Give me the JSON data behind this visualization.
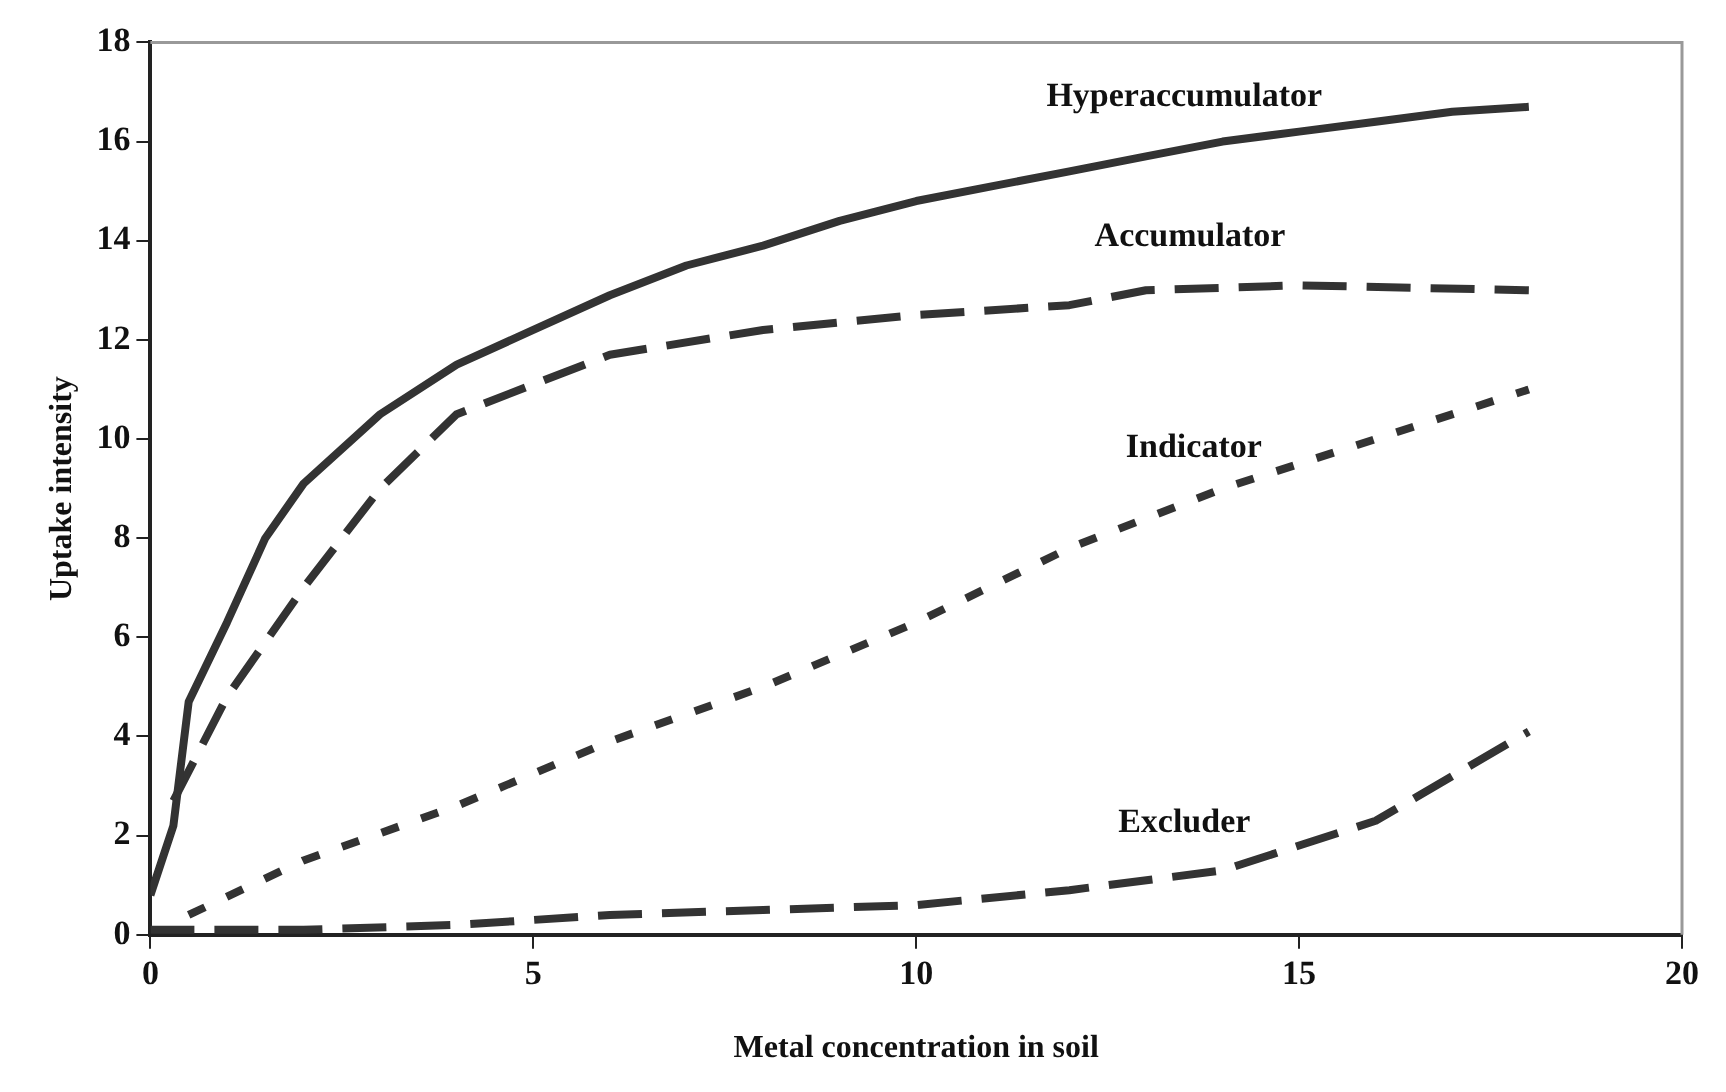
{
  "chart_data": {
    "type": "line",
    "xlabel": "Metal concentration in soil",
    "ylabel": "Uptake intensity",
    "xlim": [
      0,
      20
    ],
    "xticks": [
      0,
      5,
      10,
      15,
      20
    ],
    "ylim": [
      0,
      18
    ],
    "yticks": [
      0,
      2,
      4,
      6,
      8,
      10,
      12,
      14,
      16,
      18
    ],
    "grid": false,
    "legend": false,
    "marker": "none",
    "series": [
      {
        "name": "Hyperaccumulator",
        "color": "#333333",
        "line_style": "solid",
        "x": [
          0,
          0.3,
          0.5,
          1,
          1.5,
          2,
          3,
          4,
          5,
          6,
          7,
          8,
          9,
          10,
          11,
          12,
          13,
          14,
          15,
          16,
          17,
          18
        ],
        "values": [
          0.8,
          2.2,
          4.7,
          6.3,
          8,
          9.1,
          10.5,
          11.5,
          12.2,
          12.9,
          13.5,
          13.9,
          14.4,
          14.8,
          15.1,
          15.4,
          15.7,
          16,
          16.2,
          16.4,
          16.6,
          16.7
        ]
      },
      {
        "name": "Accumulator",
        "color": "#333333",
        "line_style": "dashed",
        "x": [
          0.3,
          1,
          2,
          3,
          4,
          5,
          6,
          8,
          10,
          12,
          13,
          15,
          18
        ],
        "values": [
          2.7,
          4.8,
          7,
          9,
          10.5,
          11.1,
          11.7,
          12.2,
          12.5,
          12.7,
          13,
          13.1,
          13
        ]
      },
      {
        "name": "Indicator",
        "color": "#333333",
        "line_style": "dotted",
        "x": [
          0.5,
          2,
          4,
          6,
          8,
          10,
          12,
          14,
          16,
          18
        ],
        "values": [
          0.4,
          1.5,
          2.6,
          3.9,
          5,
          6.3,
          7.8,
          9,
          10,
          11
        ]
      },
      {
        "name": "Excluder",
        "color": "#333333",
        "line_style": "dashed",
        "x": [
          0,
          2,
          4,
          6,
          8,
          10,
          12,
          14,
          16,
          17,
          18
        ],
        "values": [
          0.1,
          0.1,
          0.2,
          0.4,
          0.5,
          0.6,
          0.9,
          1.3,
          2.3,
          3.2,
          4.1
        ]
      }
    ]
  }
}
